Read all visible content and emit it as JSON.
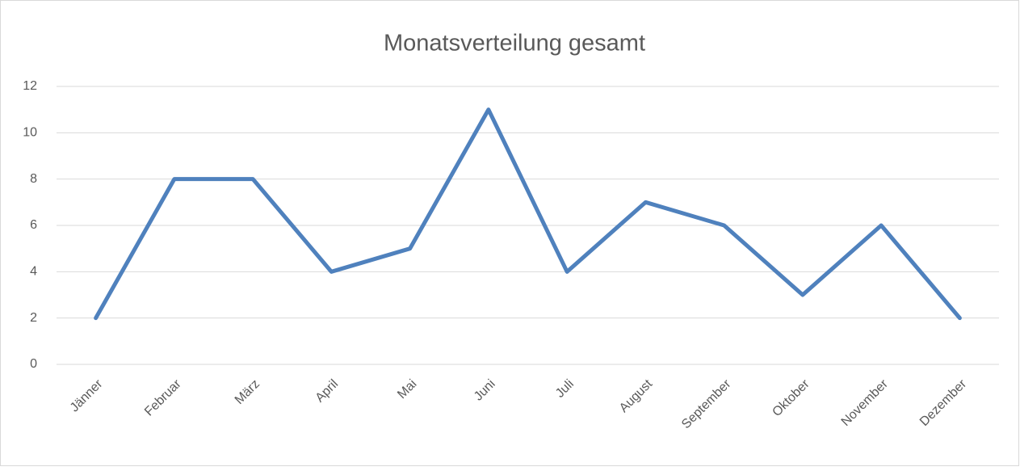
{
  "chart_data": {
    "type": "line",
    "title": "Monatsverteilung gesamt",
    "categories": [
      "Jänner",
      "Februar",
      "März",
      "April",
      "Mai",
      "Juni",
      "Juli",
      "August",
      "September",
      "Oktober",
      "November",
      "Dezember"
    ],
    "values": [
      2,
      8,
      8,
      4,
      5,
      11,
      4,
      7,
      6,
      3,
      6,
      2
    ],
    "color": "#4f81bd",
    "ylim": [
      0,
      12
    ],
    "yticks": [
      0,
      2,
      4,
      6,
      8,
      10,
      12
    ],
    "grid": true
  }
}
